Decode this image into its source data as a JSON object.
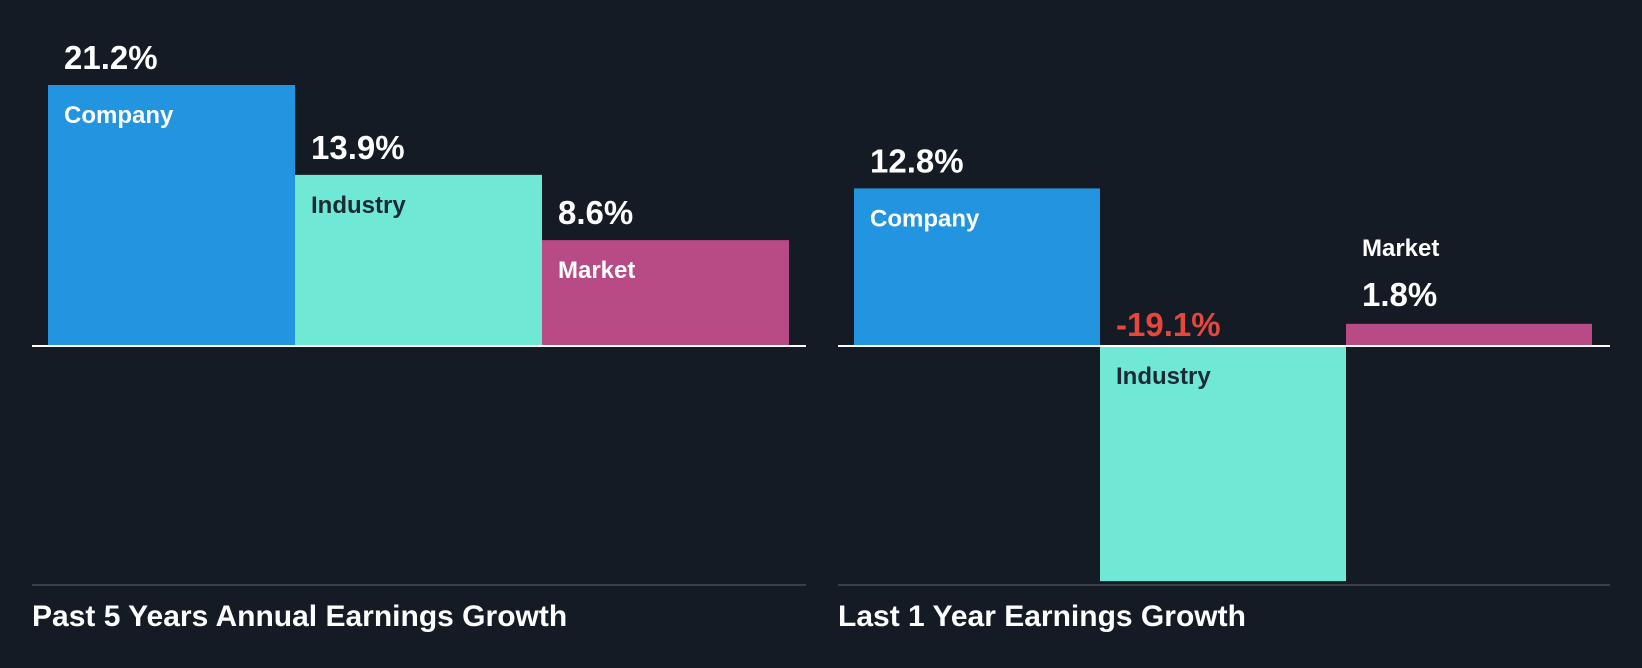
{
  "colors": {
    "background": "#151b24",
    "company": "#2394e0",
    "industry": "#6fe8d6",
    "market": "#b84a86",
    "positive_text": "#ffffff",
    "negative_text": "#e5473f",
    "inside_label_dark": "#1c2a35",
    "inside_label_light": "#ffffff",
    "baseline": "#ffffff",
    "bottom_rule": "#3a4048"
  },
  "chart_data": [
    {
      "type": "bar",
      "title": "Past 5 Years Annual Earnings Growth",
      "categories": [
        "Company",
        "Industry",
        "Market"
      ],
      "values": [
        21.2,
        13.9,
        8.6
      ],
      "value_labels": [
        "21.2%",
        "13.9%",
        "8.6%"
      ],
      "ylim": [
        -19.5,
        21.2
      ],
      "unit": "%"
    },
    {
      "type": "bar",
      "title": "Last 1 Year Earnings Growth",
      "categories": [
        "Company",
        "Industry",
        "Market"
      ],
      "values": [
        12.8,
        -19.1,
        1.8
      ],
      "value_labels": [
        "12.8%",
        "-19.1%",
        "1.8%"
      ],
      "ylim": [
        -19.5,
        21.2
      ],
      "unit": "%"
    }
  ]
}
